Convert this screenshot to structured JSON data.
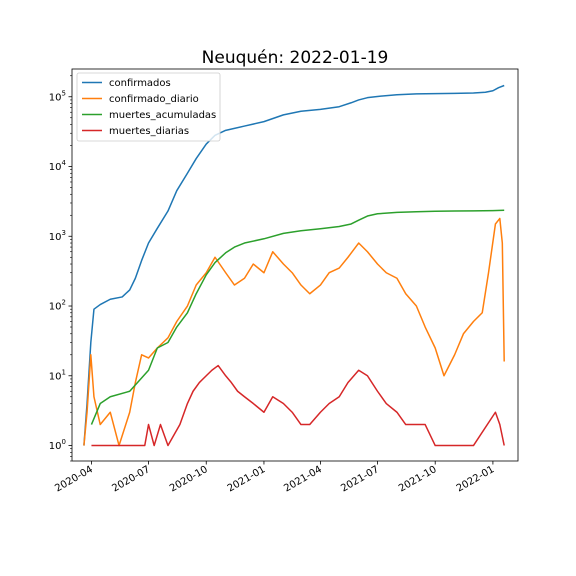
{
  "chart_data": {
    "type": "line",
    "title": "Neuquén: 2022-01-19",
    "xlabel": "",
    "ylabel": "",
    "yscale": "log",
    "ylim": [
      0.6,
      250000
    ],
    "xlim": [
      "2020-03-01",
      "2022-02-10"
    ],
    "x_tick_labels": [
      "2020-04",
      "2020-07",
      "2020-10",
      "2021-01",
      "2021-04",
      "2021-07",
      "2021-10",
      "2022-01"
    ],
    "y_ticks": [
      {
        "value": 1,
        "base": "10",
        "exp": "0"
      },
      {
        "value": 10,
        "base": "10",
        "exp": "1"
      },
      {
        "value": 100,
        "base": "10",
        "exp": "2"
      },
      {
        "value": 1000,
        "base": "10",
        "exp": "3"
      },
      {
        "value": 10000,
        "base": "10",
        "exp": "4"
      },
      {
        "value": 100000,
        "base": "10",
        "exp": "5"
      }
    ],
    "grid": false,
    "legend_position": "top-left",
    "series": [
      {
        "name": "confirmados",
        "color": "#1f77b4",
        "points": [
          [
            "2020-03-20",
            1
          ],
          [
            "2020-03-25",
            4
          ],
          [
            "2020-03-31",
            30
          ],
          [
            "2020-04-05",
            90
          ],
          [
            "2020-04-15",
            105
          ],
          [
            "2020-05-01",
            125
          ],
          [
            "2020-05-20",
            135
          ],
          [
            "2020-06-01",
            170
          ],
          [
            "2020-06-10",
            250
          ],
          [
            "2020-06-20",
            450
          ],
          [
            "2020-07-01",
            800
          ],
          [
            "2020-07-15",
            1300
          ],
          [
            "2020-08-01",
            2300
          ],
          [
            "2020-08-15",
            4500
          ],
          [
            "2020-09-01",
            8000
          ],
          [
            "2020-09-15",
            13000
          ],
          [
            "2020-10-01",
            21000
          ],
          [
            "2020-10-15",
            28000
          ],
          [
            "2020-11-01",
            33000
          ],
          [
            "2020-12-01",
            38000
          ],
          [
            "2021-01-01",
            44000
          ],
          [
            "2021-02-01",
            55000
          ],
          [
            "2021-03-01",
            62000
          ],
          [
            "2021-04-01",
            66000
          ],
          [
            "2021-05-01",
            72000
          ],
          [
            "2021-05-20",
            82000
          ],
          [
            "2021-06-01",
            90000
          ],
          [
            "2021-06-15",
            97000
          ],
          [
            "2021-07-01",
            101000
          ],
          [
            "2021-08-01",
            107000
          ],
          [
            "2021-09-01",
            110000
          ],
          [
            "2021-10-01",
            111000
          ],
          [
            "2021-11-01",
            112000
          ],
          [
            "2021-12-01",
            113000
          ],
          [
            "2021-12-20",
            116000
          ],
          [
            "2022-01-01",
            122000
          ],
          [
            "2022-01-10",
            135000
          ],
          [
            "2022-01-19",
            145000
          ]
        ]
      },
      {
        "name": "confirmado_diario",
        "color": "#ff7f0e",
        "points": [
          [
            "2020-03-20",
            1
          ],
          [
            "2020-03-25",
            3
          ],
          [
            "2020-03-31",
            20
          ],
          [
            "2020-04-05",
            5
          ],
          [
            "2020-04-15",
            2
          ],
          [
            "2020-05-01",
            3
          ],
          [
            "2020-05-15",
            1
          ],
          [
            "2020-06-01",
            3
          ],
          [
            "2020-06-10",
            8
          ],
          [
            "2020-06-20",
            20
          ],
          [
            "2020-07-01",
            18
          ],
          [
            "2020-07-15",
            25
          ],
          [
            "2020-08-01",
            35
          ],
          [
            "2020-08-15",
            60
          ],
          [
            "2020-09-01",
            100
          ],
          [
            "2020-09-15",
            200
          ],
          [
            "2020-10-01",
            300
          ],
          [
            "2020-10-15",
            500
          ],
          [
            "2020-11-01",
            300
          ],
          [
            "2020-11-15",
            200
          ],
          [
            "2020-12-01",
            250
          ],
          [
            "2020-12-15",
            400
          ],
          [
            "2021-01-01",
            300
          ],
          [
            "2021-01-15",
            600
          ],
          [
            "2021-02-01",
            400
          ],
          [
            "2021-02-15",
            300
          ],
          [
            "2021-03-01",
            200
          ],
          [
            "2021-03-15",
            150
          ],
          [
            "2021-04-01",
            200
          ],
          [
            "2021-04-15",
            300
          ],
          [
            "2021-05-01",
            350
          ],
          [
            "2021-05-15",
            500
          ],
          [
            "2021-06-01",
            800
          ],
          [
            "2021-06-15",
            600
          ],
          [
            "2021-07-01",
            400
          ],
          [
            "2021-07-15",
            300
          ],
          [
            "2021-08-01",
            250
          ],
          [
            "2021-08-15",
            150
          ],
          [
            "2021-09-01",
            100
          ],
          [
            "2021-09-15",
            50
          ],
          [
            "2021-10-01",
            25
          ],
          [
            "2021-10-15",
            10
          ],
          [
            "2021-11-01",
            20
          ],
          [
            "2021-11-15",
            40
          ],
          [
            "2021-12-01",
            60
          ],
          [
            "2021-12-15",
            80
          ],
          [
            "2021-12-25",
            300
          ],
          [
            "2022-01-05",
            1500
          ],
          [
            "2022-01-12",
            1800
          ],
          [
            "2022-01-16",
            800
          ],
          [
            "2022-01-19",
            16
          ]
        ]
      },
      {
        "name": "muertes_acumuladas",
        "color": "#2ca02c",
        "points": [
          [
            "2020-04-01",
            2
          ],
          [
            "2020-04-15",
            4
          ],
          [
            "2020-05-01",
            5
          ],
          [
            "2020-06-01",
            6
          ],
          [
            "2020-07-01",
            12
          ],
          [
            "2020-07-15",
            25
          ],
          [
            "2020-08-01",
            30
          ],
          [
            "2020-08-15",
            50
          ],
          [
            "2020-09-01",
            80
          ],
          [
            "2020-09-15",
            150
          ],
          [
            "2020-10-01",
            280
          ],
          [
            "2020-10-15",
            420
          ],
          [
            "2020-11-01",
            580
          ],
          [
            "2020-11-15",
            700
          ],
          [
            "2020-12-01",
            800
          ],
          [
            "2021-01-01",
            920
          ],
          [
            "2021-02-01",
            1100
          ],
          [
            "2021-03-01",
            1200
          ],
          [
            "2021-04-01",
            1280
          ],
          [
            "2021-05-01",
            1380
          ],
          [
            "2021-05-20",
            1500
          ],
          [
            "2021-06-01",
            1700
          ],
          [
            "2021-06-15",
            1950
          ],
          [
            "2021-07-01",
            2100
          ],
          [
            "2021-08-01",
            2200
          ],
          [
            "2021-09-01",
            2250
          ],
          [
            "2021-10-01",
            2280
          ],
          [
            "2021-11-01",
            2300
          ],
          [
            "2021-12-01",
            2310
          ],
          [
            "2022-01-01",
            2330
          ],
          [
            "2022-01-19",
            2360
          ]
        ]
      },
      {
        "name": "muertes_diarias",
        "color": "#d62728",
        "points": [
          [
            "2020-04-01",
            1
          ],
          [
            "2020-04-20",
            1
          ],
          [
            "2020-06-25",
            1
          ],
          [
            "2020-07-01",
            2
          ],
          [
            "2020-07-10",
            1
          ],
          [
            "2020-07-20",
            2
          ],
          [
            "2020-08-01",
            1
          ],
          [
            "2020-08-20",
            2
          ],
          [
            "2020-09-01",
            4
          ],
          [
            "2020-09-10",
            6
          ],
          [
            "2020-09-20",
            8
          ],
          [
            "2020-10-01",
            10
          ],
          [
            "2020-10-10",
            12
          ],
          [
            "2020-10-20",
            14
          ],
          [
            "2020-11-01",
            10
          ],
          [
            "2020-11-10",
            8
          ],
          [
            "2020-11-20",
            6
          ],
          [
            "2020-12-01",
            5
          ],
          [
            "2020-12-15",
            4
          ],
          [
            "2021-01-01",
            3
          ],
          [
            "2021-01-15",
            5
          ],
          [
            "2021-02-01",
            4
          ],
          [
            "2021-02-15",
            3
          ],
          [
            "2021-03-01",
            2
          ],
          [
            "2021-03-15",
            2
          ],
          [
            "2021-04-01",
            3
          ],
          [
            "2021-04-15",
            4
          ],
          [
            "2021-05-01",
            5
          ],
          [
            "2021-05-15",
            8
          ],
          [
            "2021-06-01",
            12
          ],
          [
            "2021-06-15",
            10
          ],
          [
            "2021-07-01",
            6
          ],
          [
            "2021-07-15",
            4
          ],
          [
            "2021-08-01",
            3
          ],
          [
            "2021-08-15",
            2
          ],
          [
            "2021-09-01",
            2
          ],
          [
            "2021-09-15",
            2
          ],
          [
            "2021-10-01",
            1
          ],
          [
            "2021-11-01",
            1
          ],
          [
            "2021-12-01",
            1
          ],
          [
            "2022-01-05",
            3
          ],
          [
            "2022-01-12",
            2
          ],
          [
            "2022-01-19",
            1
          ]
        ]
      }
    ]
  }
}
